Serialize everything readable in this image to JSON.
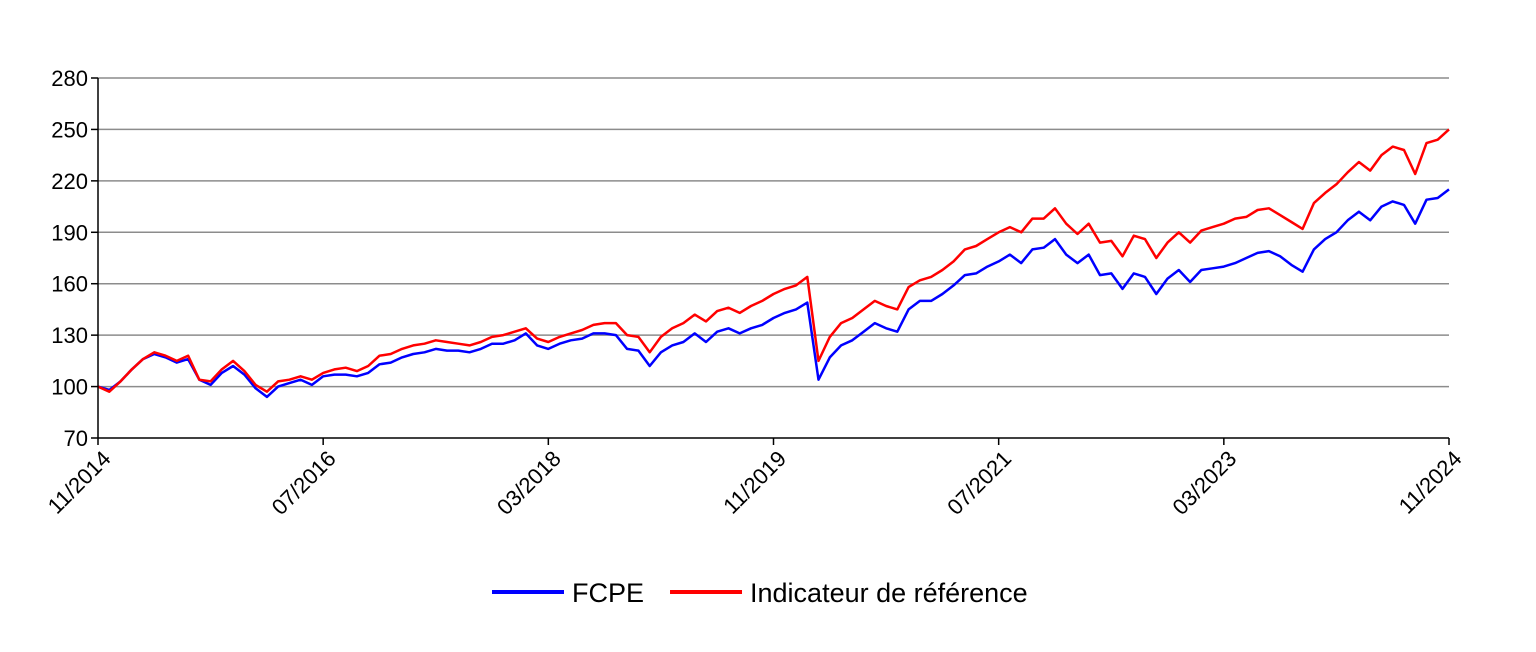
{
  "chart_data": {
    "type": "line",
    "title": "",
    "xlabel": "",
    "ylabel": "",
    "ylim": [
      70,
      280
    ],
    "yticks": [
      70,
      100,
      130,
      160,
      190,
      220,
      250,
      280
    ],
    "xlim": [
      "2014-11",
      "2024-11"
    ],
    "xticks": [
      "11/2014",
      "07/2016",
      "03/2018",
      "11/2019",
      "07/2021",
      "03/2023",
      "11/2024"
    ],
    "grid": true,
    "legend_position": "bottom",
    "series": [
      {
        "name": "FCPE",
        "color": "#0000ff",
        "points": [
          [
            "2014-11",
            100
          ],
          [
            "2014-12",
            98
          ],
          [
            "2015-01",
            103
          ],
          [
            "2015-02",
            110
          ],
          [
            "2015-03",
            116
          ],
          [
            "2015-04",
            119
          ],
          [
            "2015-05",
            117
          ],
          [
            "2015-06",
            114
          ],
          [
            "2015-07",
            116
          ],
          [
            "2015-08",
            104
          ],
          [
            "2015-09",
            101
          ],
          [
            "2015-10",
            108
          ],
          [
            "2015-11",
            112
          ],
          [
            "2015-12",
            107
          ],
          [
            "2016-01",
            99
          ],
          [
            "2016-02",
            94
          ],
          [
            "2016-03",
            100
          ],
          [
            "2016-04",
            102
          ],
          [
            "2016-05",
            104
          ],
          [
            "2016-06",
            101
          ],
          [
            "2016-07",
            106
          ],
          [
            "2016-08",
            107
          ],
          [
            "2016-09",
            107
          ],
          [
            "2016-10",
            106
          ],
          [
            "2016-11",
            108
          ],
          [
            "2016-12",
            113
          ],
          [
            "2017-01",
            114
          ],
          [
            "2017-02",
            117
          ],
          [
            "2017-03",
            119
          ],
          [
            "2017-04",
            120
          ],
          [
            "2017-05",
            122
          ],
          [
            "2017-06",
            121
          ],
          [
            "2017-07",
            121
          ],
          [
            "2017-08",
            120
          ],
          [
            "2017-09",
            122
          ],
          [
            "2017-10",
            125
          ],
          [
            "2017-11",
            125
          ],
          [
            "2017-12",
            127
          ],
          [
            "2018-01",
            131
          ],
          [
            "2018-02",
            124
          ],
          [
            "2018-03",
            122
          ],
          [
            "2018-04",
            125
          ],
          [
            "2018-05",
            127
          ],
          [
            "2018-06",
            128
          ],
          [
            "2018-07",
            131
          ],
          [
            "2018-08",
            131
          ],
          [
            "2018-09",
            130
          ],
          [
            "2018-10",
            122
          ],
          [
            "2018-11",
            121
          ],
          [
            "2018-12",
            112
          ],
          [
            "2019-01",
            120
          ],
          [
            "2019-02",
            124
          ],
          [
            "2019-03",
            126
          ],
          [
            "2019-04",
            131
          ],
          [
            "2019-05",
            126
          ],
          [
            "2019-06",
            132
          ],
          [
            "2019-07",
            134
          ],
          [
            "2019-08",
            131
          ],
          [
            "2019-09",
            134
          ],
          [
            "2019-10",
            136
          ],
          [
            "2019-11",
            140
          ],
          [
            "2019-12",
            143
          ],
          [
            "2020-01",
            145
          ],
          [
            "2020-02",
            149
          ],
          [
            "2020-03",
            104
          ],
          [
            "2020-04",
            117
          ],
          [
            "2020-05",
            124
          ],
          [
            "2020-06",
            127
          ],
          [
            "2020-07",
            132
          ],
          [
            "2020-08",
            137
          ],
          [
            "2020-09",
            134
          ],
          [
            "2020-10",
            132
          ],
          [
            "2020-11",
            145
          ],
          [
            "2020-12",
            150
          ],
          [
            "2021-01",
            150
          ],
          [
            "2021-02",
            154
          ],
          [
            "2021-03",
            159
          ],
          [
            "2021-04",
            165
          ],
          [
            "2021-05",
            166
          ],
          [
            "2021-06",
            170
          ],
          [
            "2021-07",
            173
          ],
          [
            "2021-08",
            177
          ],
          [
            "2021-09",
            172
          ],
          [
            "2021-10",
            180
          ],
          [
            "2021-11",
            181
          ],
          [
            "2021-12",
            186
          ],
          [
            "2022-01",
            177
          ],
          [
            "2022-02",
            172
          ],
          [
            "2022-03",
            177
          ],
          [
            "2022-04",
            165
          ],
          [
            "2022-05",
            166
          ],
          [
            "2022-06",
            157
          ],
          [
            "2022-07",
            166
          ],
          [
            "2022-08",
            164
          ],
          [
            "2022-09",
            154
          ],
          [
            "2022-10",
            163
          ],
          [
            "2022-11",
            168
          ],
          [
            "2022-12",
            161
          ],
          [
            "2023-01",
            168
          ],
          [
            "2023-02",
            169
          ],
          [
            "2023-03",
            170
          ],
          [
            "2023-04",
            172
          ],
          [
            "2023-05",
            175
          ],
          [
            "2023-06",
            178
          ],
          [
            "2023-07",
            179
          ],
          [
            "2023-08",
            176
          ],
          [
            "2023-09",
            171
          ],
          [
            "2023-10",
            167
          ],
          [
            "2023-11",
            180
          ],
          [
            "2023-12",
            186
          ],
          [
            "2024-01",
            190
          ],
          [
            "2024-02",
            197
          ],
          [
            "2024-03",
            202
          ],
          [
            "2024-04",
            197
          ],
          [
            "2024-05",
            205
          ],
          [
            "2024-06",
            208
          ],
          [
            "2024-07",
            206
          ],
          [
            "2024-08",
            195
          ],
          [
            "2024-09",
            209
          ],
          [
            "2024-10",
            210
          ],
          [
            "2024-11",
            215
          ]
        ]
      },
      {
        "name": "Indicateur de référence",
        "color": "#ff0000",
        "points": [
          [
            "2014-11",
            100
          ],
          [
            "2014-12",
            97
          ],
          [
            "2015-01",
            103
          ],
          [
            "2015-02",
            110
          ],
          [
            "2015-03",
            116
          ],
          [
            "2015-04",
            120
          ],
          [
            "2015-05",
            118
          ],
          [
            "2015-06",
            115
          ],
          [
            "2015-07",
            118
          ],
          [
            "2015-08",
            104
          ],
          [
            "2015-09",
            103
          ],
          [
            "2015-10",
            110
          ],
          [
            "2015-11",
            115
          ],
          [
            "2015-12",
            109
          ],
          [
            "2016-01",
            101
          ],
          [
            "2016-02",
            97
          ],
          [
            "2016-03",
            103
          ],
          [
            "2016-04",
            104
          ],
          [
            "2016-05",
            106
          ],
          [
            "2016-06",
            104
          ],
          [
            "2016-07",
            108
          ],
          [
            "2016-08",
            110
          ],
          [
            "2016-09",
            111
          ],
          [
            "2016-10",
            109
          ],
          [
            "2016-11",
            112
          ],
          [
            "2016-12",
            118
          ],
          [
            "2017-01",
            119
          ],
          [
            "2017-02",
            122
          ],
          [
            "2017-03",
            124
          ],
          [
            "2017-04",
            125
          ],
          [
            "2017-05",
            127
          ],
          [
            "2017-06",
            126
          ],
          [
            "2017-07",
            125
          ],
          [
            "2017-08",
            124
          ],
          [
            "2017-09",
            126
          ],
          [
            "2017-10",
            129
          ],
          [
            "2017-11",
            130
          ],
          [
            "2017-12",
            132
          ],
          [
            "2018-01",
            134
          ],
          [
            "2018-02",
            128
          ],
          [
            "2018-03",
            126
          ],
          [
            "2018-04",
            129
          ],
          [
            "2018-05",
            131
          ],
          [
            "2018-06",
            133
          ],
          [
            "2018-07",
            136
          ],
          [
            "2018-08",
            137
          ],
          [
            "2018-09",
            137
          ],
          [
            "2018-10",
            130
          ],
          [
            "2018-11",
            129
          ],
          [
            "2018-12",
            120
          ],
          [
            "2019-01",
            129
          ],
          [
            "2019-02",
            134
          ],
          [
            "2019-03",
            137
          ],
          [
            "2019-04",
            142
          ],
          [
            "2019-05",
            138
          ],
          [
            "2019-06",
            144
          ],
          [
            "2019-07",
            146
          ],
          [
            "2019-08",
            143
          ],
          [
            "2019-09",
            147
          ],
          [
            "2019-10",
            150
          ],
          [
            "2019-11",
            154
          ],
          [
            "2019-12",
            157
          ],
          [
            "2020-01",
            159
          ],
          [
            "2020-02",
            164
          ],
          [
            "2020-03",
            115
          ],
          [
            "2020-04",
            129
          ],
          [
            "2020-05",
            137
          ],
          [
            "2020-06",
            140
          ],
          [
            "2020-07",
            145
          ],
          [
            "2020-08",
            150
          ],
          [
            "2020-09",
            147
          ],
          [
            "2020-10",
            145
          ],
          [
            "2020-11",
            158
          ],
          [
            "2020-12",
            162
          ],
          [
            "2021-01",
            164
          ],
          [
            "2021-02",
            168
          ],
          [
            "2021-03",
            173
          ],
          [
            "2021-04",
            180
          ],
          [
            "2021-05",
            182
          ],
          [
            "2021-06",
            186
          ],
          [
            "2021-07",
            190
          ],
          [
            "2021-08",
            193
          ],
          [
            "2021-09",
            190
          ],
          [
            "2021-10",
            198
          ],
          [
            "2021-11",
            198
          ],
          [
            "2021-12",
            204
          ],
          [
            "2022-01",
            195
          ],
          [
            "2022-02",
            189
          ],
          [
            "2022-03",
            195
          ],
          [
            "2022-04",
            184
          ],
          [
            "2022-05",
            185
          ],
          [
            "2022-06",
            176
          ],
          [
            "2022-07",
            188
          ],
          [
            "2022-08",
            186
          ],
          [
            "2022-09",
            175
          ],
          [
            "2022-10",
            184
          ],
          [
            "2022-11",
            190
          ],
          [
            "2022-12",
            184
          ],
          [
            "2023-01",
            191
          ],
          [
            "2023-02",
            193
          ],
          [
            "2023-03",
            195
          ],
          [
            "2023-04",
            198
          ],
          [
            "2023-05",
            199
          ],
          [
            "2023-06",
            203
          ],
          [
            "2023-07",
            204
          ],
          [
            "2023-08",
            200
          ],
          [
            "2023-09",
            196
          ],
          [
            "2023-10",
            192
          ],
          [
            "2023-11",
            207
          ],
          [
            "2023-12",
            213
          ],
          [
            "2024-01",
            218
          ],
          [
            "2024-02",
            225
          ],
          [
            "2024-03",
            231
          ],
          [
            "2024-04",
            226
          ],
          [
            "2024-05",
            235
          ],
          [
            "2024-06",
            240
          ],
          [
            "2024-07",
            238
          ],
          [
            "2024-08",
            224
          ],
          [
            "2024-09",
            242
          ],
          [
            "2024-10",
            244
          ],
          [
            "2024-11",
            250
          ]
        ]
      }
    ]
  }
}
